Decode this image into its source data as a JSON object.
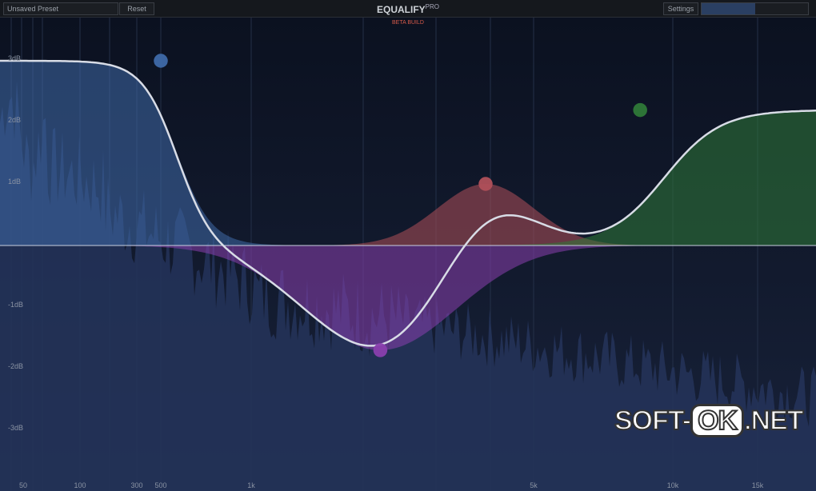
{
  "header": {
    "preset": "Unsaved Preset",
    "reset": "Reset",
    "title": "EQUALIFY",
    "title_sup": "PRO",
    "beta": "BETA BUILD",
    "settings": "Settings",
    "meter_level": 0.5
  },
  "db_labels": [
    "3dB",
    "2dB",
    "1dB",
    "-1dB",
    "-2dB",
    "-3dB"
  ],
  "db_values": [
    3,
    2,
    1,
    -1,
    -2,
    -3
  ],
  "freq_labels": [
    {
      "f": 50,
      "t": "50"
    },
    {
      "f": 100,
      "t": "100"
    },
    {
      "f": 300,
      "t": "300"
    },
    {
      "f": 500,
      "t": "500"
    },
    {
      "f": 1000,
      "t": "1k"
    },
    {
      "f": 5000,
      "t": "5k"
    },
    {
      "f": 10000,
      "t": "10k"
    },
    {
      "f": 15000,
      "t": "15k"
    }
  ],
  "gridlines": [
    20,
    30,
    40,
    50,
    100,
    200,
    300,
    500,
    1000,
    2000,
    3000,
    4000,
    5000,
    10000,
    15000
  ],
  "bands": [
    {
      "type": "low-shelf",
      "freq": 500,
      "gain": 3.0,
      "color": "#3f6aa8"
    },
    {
      "type": "bell",
      "freq": 2200,
      "gain": -1.7,
      "color": "#8a3fae"
    },
    {
      "type": "bell",
      "freq": 3900,
      "gain": 1.0,
      "color": "#b0505a"
    },
    {
      "type": "high-shelf",
      "freq": 8500,
      "gain": 2.2,
      "color": "#2f7a38"
    }
  ],
  "watermark": {
    "a": "SOFT-",
    "b": "OK",
    ".c": "",
    "c": ".NET"
  }
}
